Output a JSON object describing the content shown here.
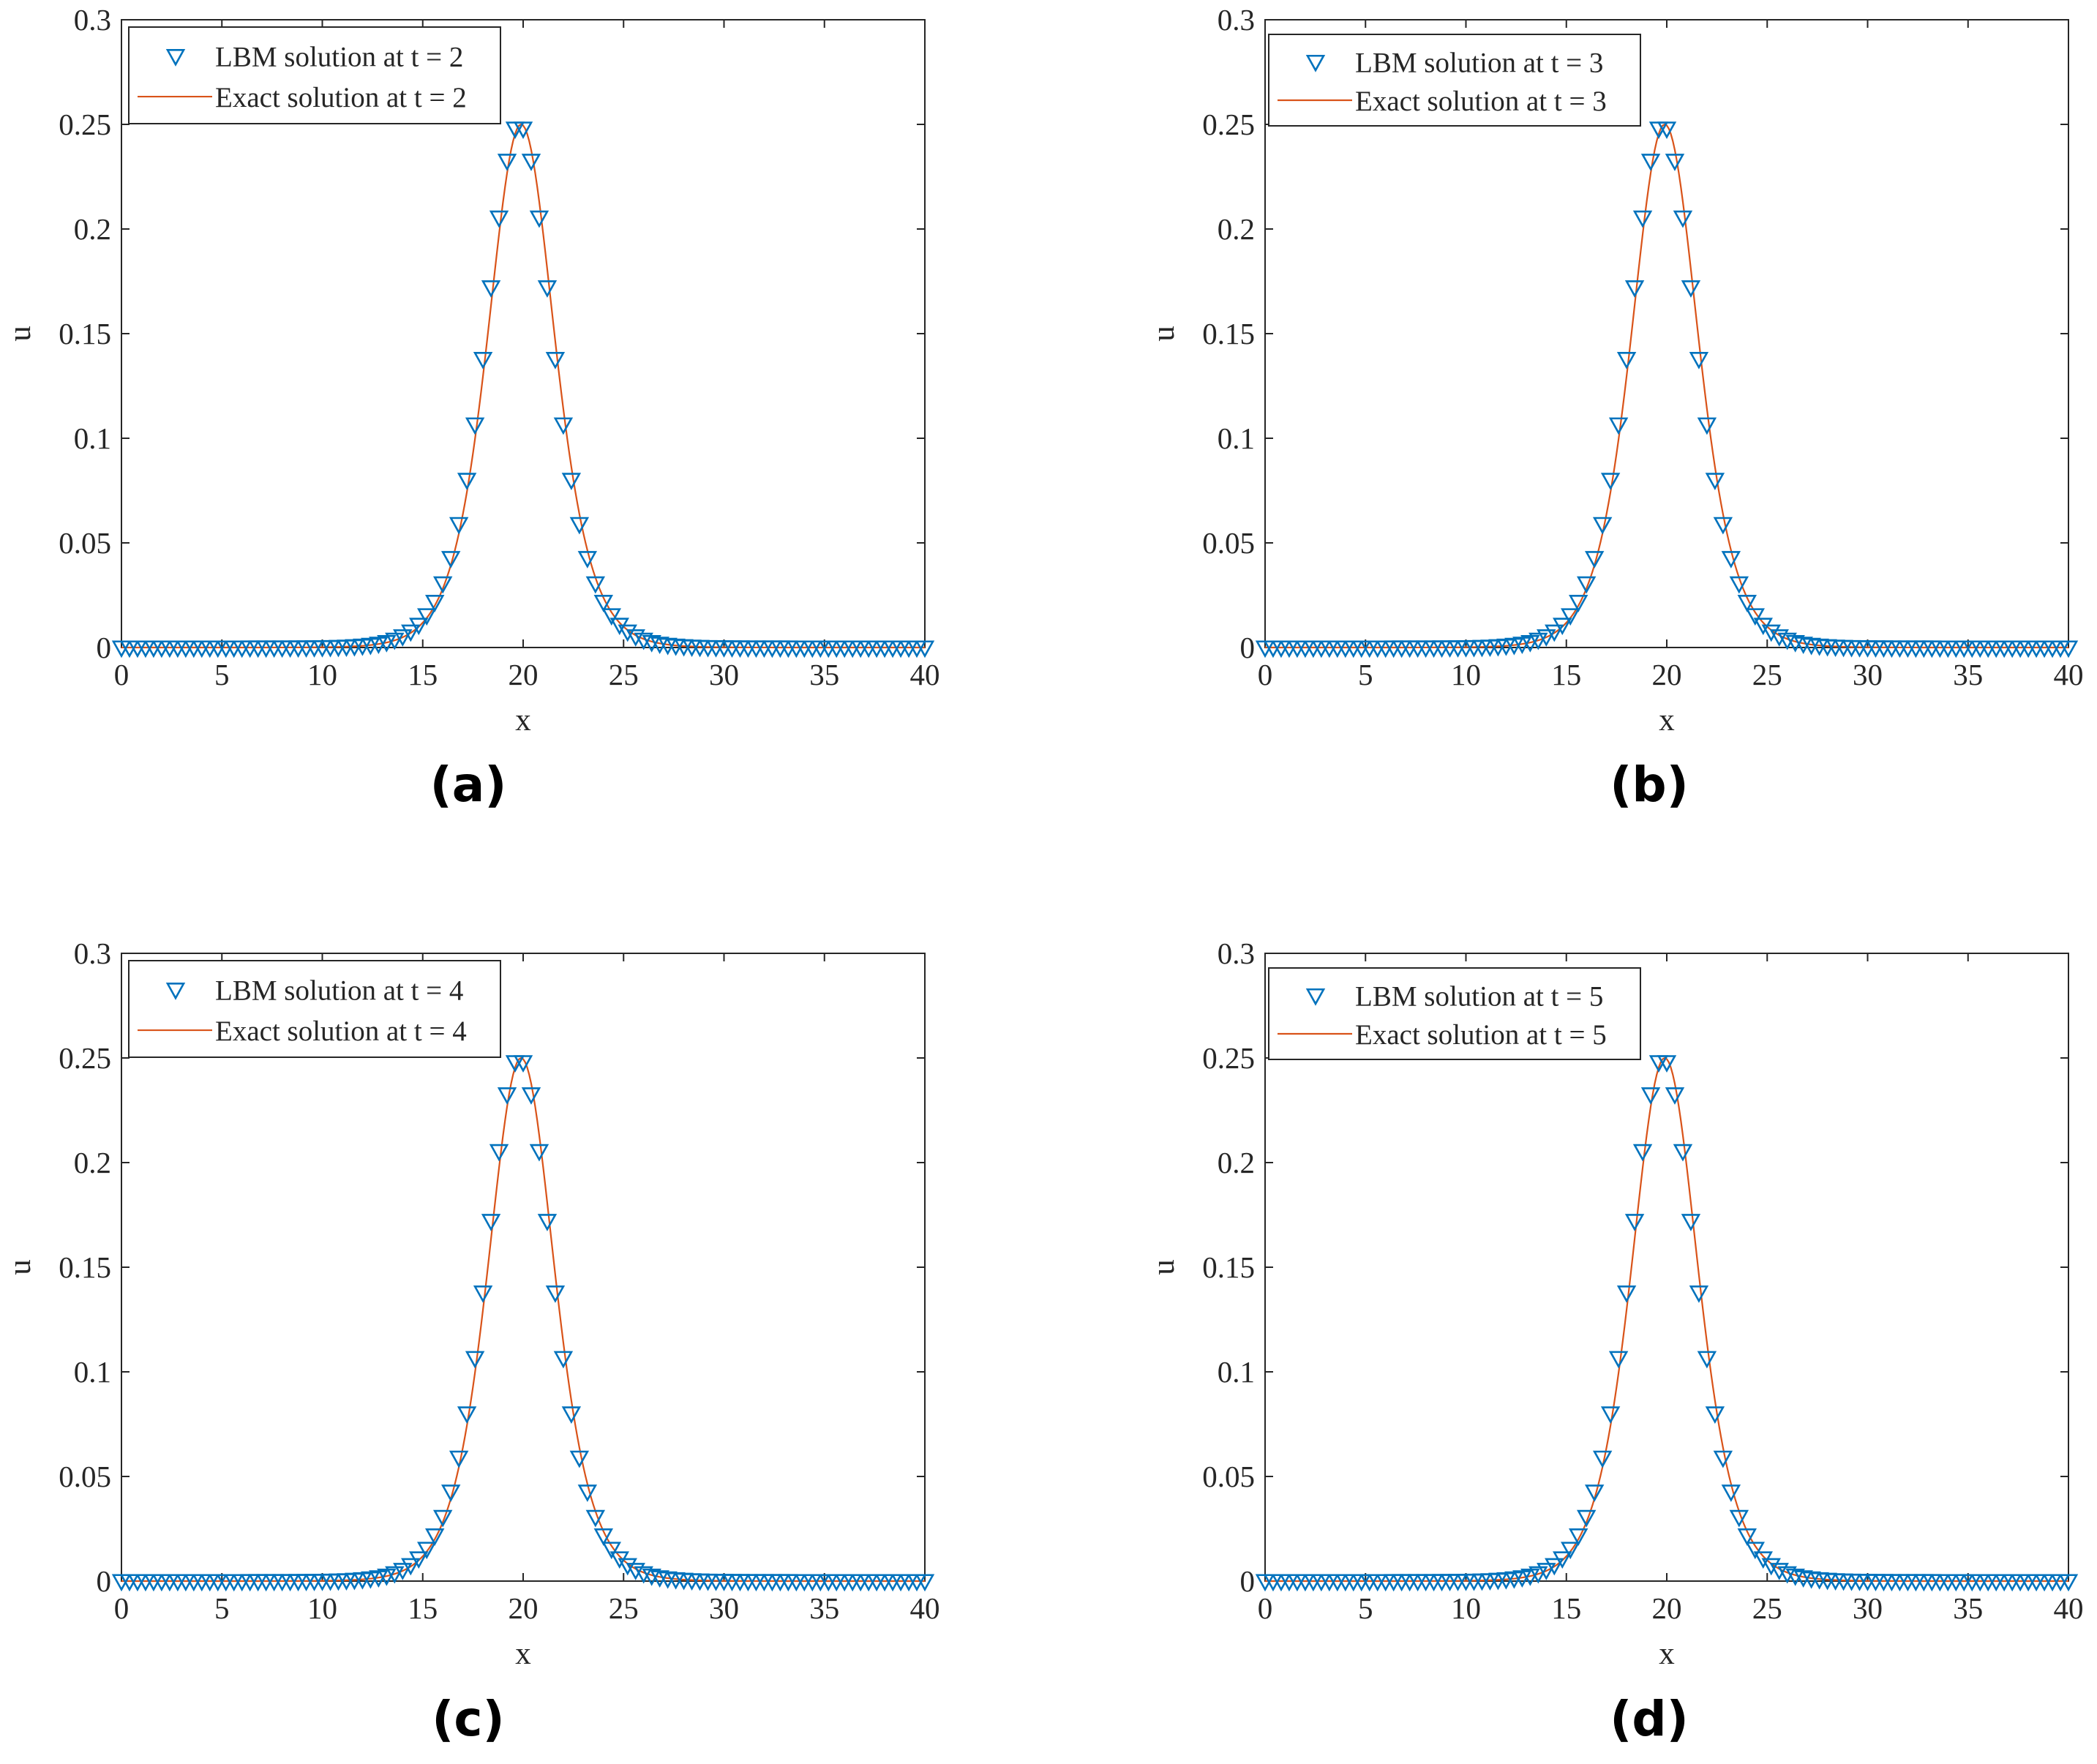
{
  "figure": {
    "colors": {
      "marker": "#0072BD",
      "line": "#D95319",
      "axis": "#262626",
      "background": "#ffffff"
    }
  },
  "chart_data": [
    {
      "type": "line",
      "panel_label": "(a)",
      "title": "",
      "xlabel": "x",
      "ylabel": "u",
      "xlim": [
        0,
        40
      ],
      "ylim": [
        0,
        0.3
      ],
      "xticks": [
        0,
        5,
        10,
        15,
        20,
        25,
        30,
        35,
        40
      ],
      "xtick_labels": [
        "0",
        "5",
        "10",
        "15",
        "20",
        "25",
        "30",
        "35",
        "40"
      ],
      "yticks": [
        0,
        0.05,
        0.1,
        0.15,
        0.2,
        0.25,
        0.3
      ],
      "ytick_labels": [
        "0",
        "0.05",
        "0.1",
        "0.15",
        "0.2",
        "0.25",
        "0.3"
      ],
      "grid": false,
      "legend_position": "top-left",
      "series": [
        {
          "name": "LBM solution at t = 2",
          "kind": "markers",
          "marker": "downward-triangle",
          "x_start": 0,
          "x_end": 40,
          "x_step": 0.4,
          "peak_value": 0.25,
          "peak_x": 19.8
        },
        {
          "name": "Exact solution at t = 2",
          "kind": "line",
          "x_start": 0,
          "x_end": 40,
          "x_step": 0.1,
          "peak_value": 0.25,
          "peak_x": 19.8
        }
      ]
    },
    {
      "type": "line",
      "panel_label": "(b)",
      "title": "",
      "xlabel": "x",
      "ylabel": "u",
      "xlim": [
        0,
        40
      ],
      "ylim": [
        0,
        0.3
      ],
      "xticks": [
        0,
        5,
        10,
        15,
        20,
        25,
        30,
        35,
        40
      ],
      "xtick_labels": [
        "0",
        "5",
        "10",
        "15",
        "20",
        "25",
        "30",
        "35",
        "40"
      ],
      "yticks": [
        0,
        0.05,
        0.1,
        0.15,
        0.2,
        0.25,
        0.3
      ],
      "ytick_labels": [
        "0",
        "0.05",
        "0.1",
        "0.15",
        "0.2",
        "0.25",
        "0.3"
      ],
      "grid": false,
      "legend_position": "top-left",
      "series": [
        {
          "name": "LBM solution at t = 3",
          "kind": "markers",
          "marker": "downward-triangle",
          "x_start": 0,
          "x_end": 40,
          "x_step": 0.4,
          "peak_value": 0.25,
          "peak_x": 19.8
        },
        {
          "name": "Exact solution at t = 3",
          "kind": "line",
          "x_start": 0,
          "x_end": 40,
          "x_step": 0.1,
          "peak_value": 0.25,
          "peak_x": 19.8
        }
      ]
    },
    {
      "type": "line",
      "panel_label": "(c)",
      "title": "",
      "xlabel": "x",
      "ylabel": "u",
      "xlim": [
        0,
        40
      ],
      "ylim": [
        0,
        0.3
      ],
      "xticks": [
        0,
        5,
        10,
        15,
        20,
        25,
        30,
        35,
        40
      ],
      "xtick_labels": [
        "0",
        "5",
        "10",
        "15",
        "20",
        "25",
        "30",
        "35",
        "40"
      ],
      "yticks": [
        0,
        0.05,
        0.1,
        0.15,
        0.2,
        0.25,
        0.3
      ],
      "ytick_labels": [
        "0",
        "0.05",
        "0.1",
        "0.15",
        "0.2",
        "0.25",
        "0.3"
      ],
      "grid": false,
      "legend_position": "top-left",
      "series": [
        {
          "name": "LBM solution at t = 4",
          "kind": "markers",
          "marker": "downward-triangle",
          "x_start": 0,
          "x_end": 40,
          "x_step": 0.4,
          "peak_value": 0.25,
          "peak_x": 19.8
        },
        {
          "name": "Exact solution at t = 4",
          "kind": "line",
          "x_start": 0,
          "x_end": 40,
          "x_step": 0.1,
          "peak_value": 0.25,
          "peak_x": 19.8
        }
      ]
    },
    {
      "type": "line",
      "panel_label": "(d)",
      "title": "",
      "xlabel": "x",
      "ylabel": "u",
      "xlim": [
        0,
        40
      ],
      "ylim": [
        0,
        0.3
      ],
      "xticks": [
        0,
        5,
        10,
        15,
        20,
        25,
        30,
        35,
        40
      ],
      "xtick_labels": [
        "0",
        "5",
        "10",
        "15",
        "20",
        "25",
        "30",
        "35",
        "40"
      ],
      "yticks": [
        0,
        0.05,
        0.1,
        0.15,
        0.2,
        0.25,
        0.3
      ],
      "ytick_labels": [
        "0",
        "0.05",
        "0.1",
        "0.15",
        "0.2",
        "0.25",
        "0.3"
      ],
      "grid": false,
      "legend_position": "top-left",
      "series": [
        {
          "name": "LBM solution at t = 5",
          "kind": "markers",
          "marker": "downward-triangle",
          "x_start": 0,
          "x_end": 40,
          "x_step": 0.4,
          "peak_value": 0.25,
          "peak_x": 19.8
        },
        {
          "name": "Exact solution at t = 5",
          "kind": "line",
          "x_start": 0,
          "x_end": 40,
          "x_step": 0.1,
          "peak_value": 0.25,
          "peak_x": 19.8
        }
      ]
    }
  ]
}
